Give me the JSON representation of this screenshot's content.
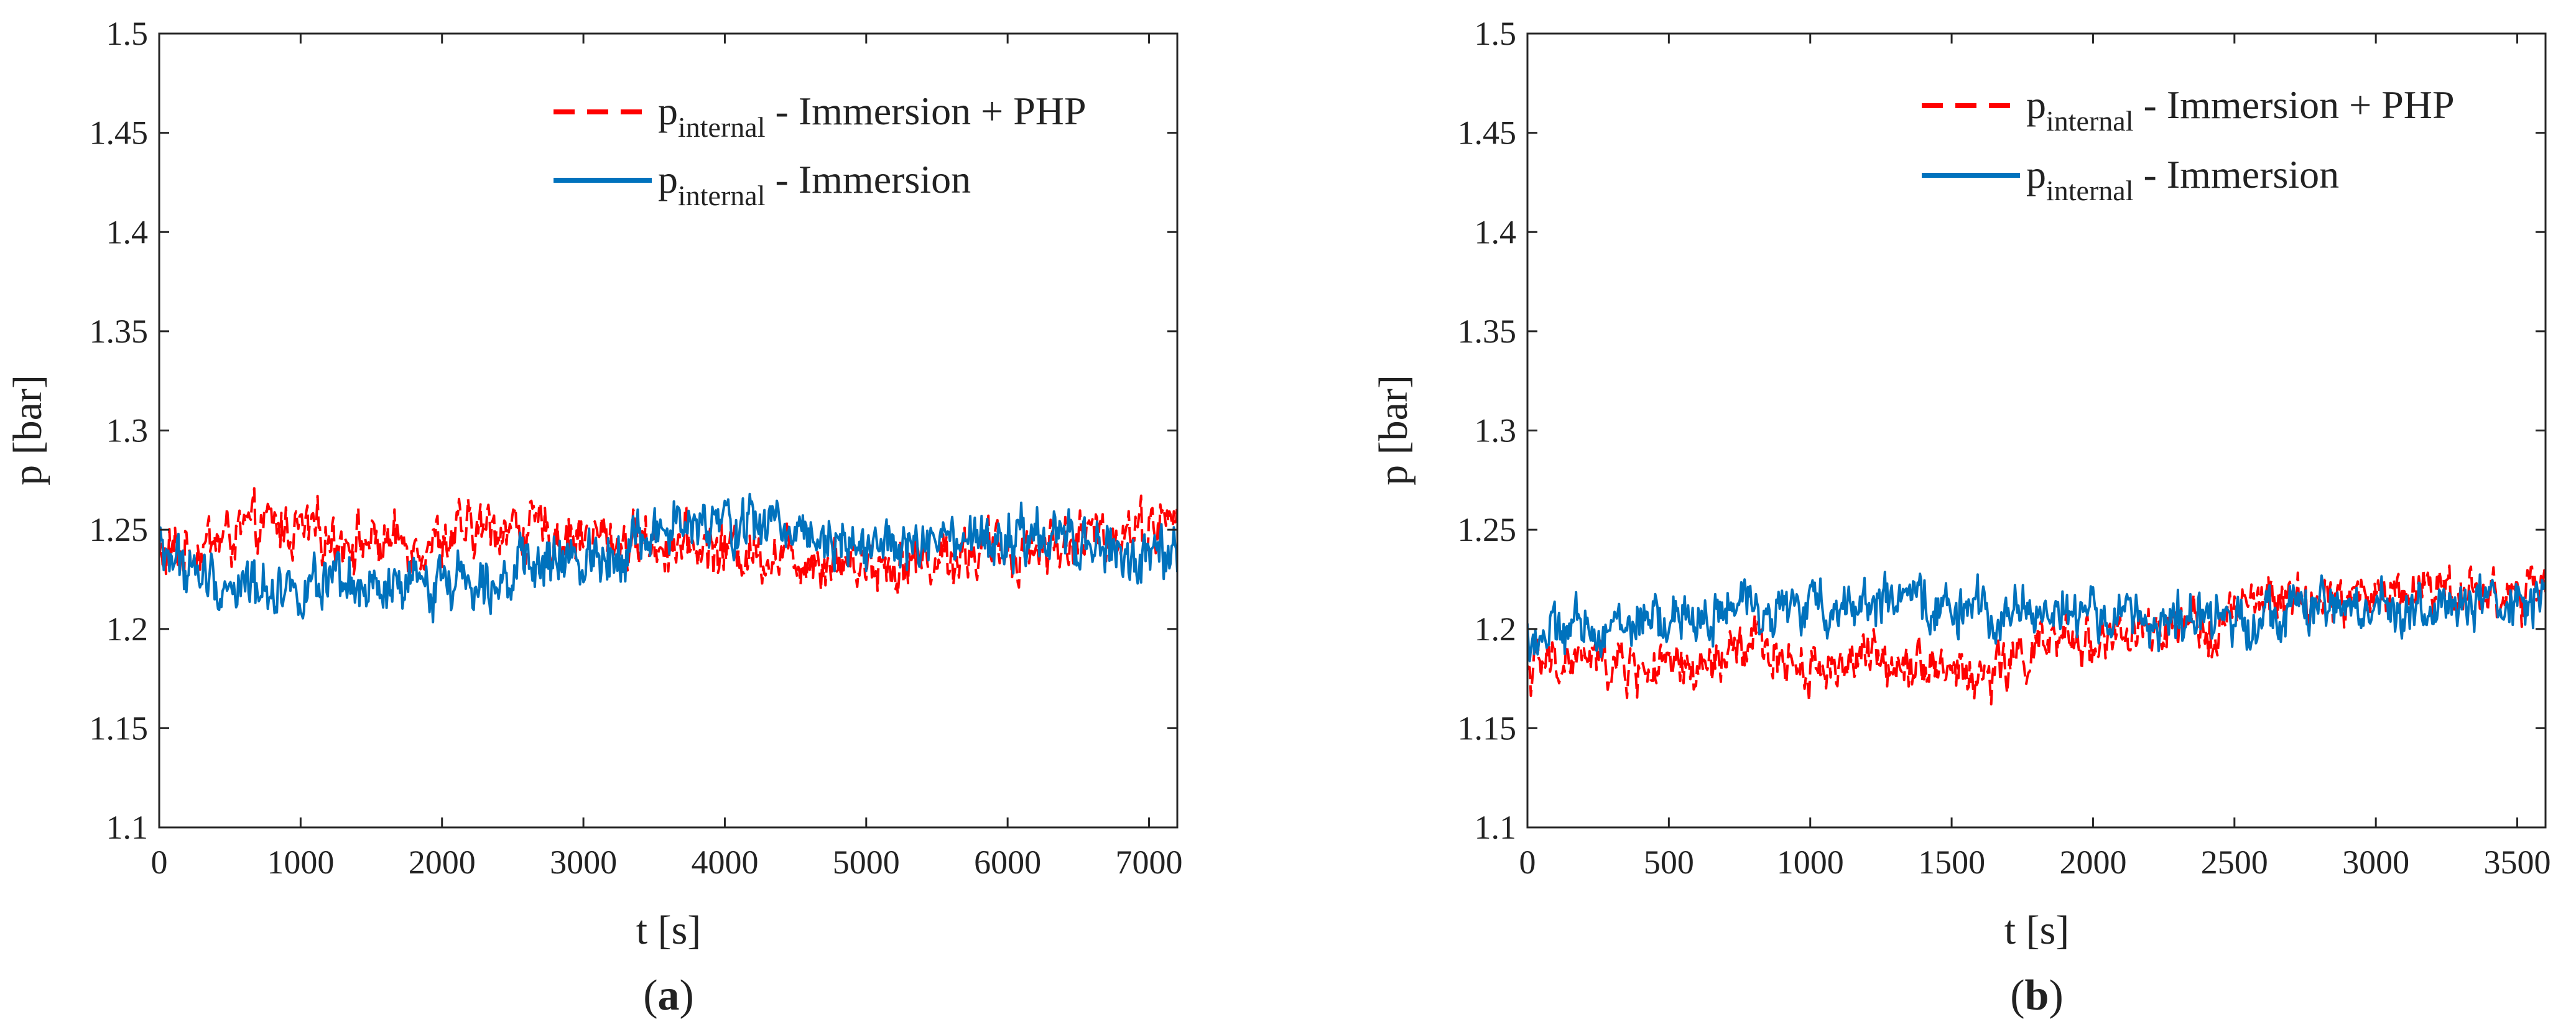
{
  "chart_data": [
    {
      "type": "line",
      "title": "",
      "xlabel": "t [s]",
      "ylabel": "p [bar]",
      "xlim": [
        0,
        7200
      ],
      "ylim": [
        1.1,
        1.5
      ],
      "xticks": [
        0,
        1000,
        2000,
        3000,
        4000,
        5000,
        6000,
        7000
      ],
      "yticks": [
        1.1,
        1.15,
        1.2,
        1.25,
        1.3,
        1.35,
        1.4,
        1.45,
        1.5
      ],
      "xtick_labels": [
        "0",
        "1000",
        "2000",
        "3000",
        "4000",
        "5000",
        "6000",
        "7000"
      ],
      "ytick_labels": [
        "1.1",
        "1.15",
        "1.2",
        "1.25",
        "1.3",
        "1.35",
        "1.4",
        "1.45",
        "1.5"
      ],
      "caption": "a",
      "legend_position": "top-right",
      "noise_amplitude": 0.012,
      "series": [
        {
          "name": "p_internal - Immersion + PHP",
          "legend_main": "p",
          "legend_sub": "internal",
          "legend_rest": " - Immersion + PHP",
          "color": "#ff0000",
          "dash": "dashed",
          "x": [
            0,
            400,
            800,
            1200,
            1600,
            2000,
            2400,
            2800,
            3200,
            3600,
            4000,
            4400,
            4800,
            5200,
            5600,
            6000,
            6400,
            6800,
            7200
          ],
          "y": [
            1.235,
            1.245,
            1.252,
            1.247,
            1.243,
            1.245,
            1.252,
            1.248,
            1.245,
            1.243,
            1.24,
            1.238,
            1.235,
            1.233,
            1.237,
            1.24,
            1.243,
            1.25,
            1.255
          ]
        },
        {
          "name": "p_internal - Immersion",
          "legend_main": "p",
          "legend_sub": "internal",
          "legend_rest": " - Immersion",
          "color": "#0072bd",
          "dash": "solid",
          "x": [
            0,
            400,
            800,
            1200,
            1600,
            2000,
            2400,
            2800,
            3200,
            3600,
            4000,
            4400,
            4800,
            5200,
            5600,
            6000,
            6400,
            6800,
            7200
          ],
          "y": [
            1.24,
            1.222,
            1.222,
            1.22,
            1.217,
            1.225,
            1.228,
            1.232,
            1.24,
            1.25,
            1.252,
            1.253,
            1.247,
            1.24,
            1.242,
            1.243,
            1.245,
            1.237,
            1.233
          ]
        }
      ]
    },
    {
      "type": "line",
      "title": "",
      "xlabel": "t [s]",
      "ylabel": "p [bar]",
      "xlim": [
        0,
        3600
      ],
      "ylim": [
        1.1,
        1.5
      ],
      "xticks": [
        0,
        500,
        1000,
        1500,
        2000,
        2500,
        3000,
        3500
      ],
      "yticks": [
        1.1,
        1.15,
        1.2,
        1.25,
        1.3,
        1.35,
        1.4,
        1.45,
        1.5
      ],
      "xtick_labels": [
        "0",
        "500",
        "1000",
        "1500",
        "2000",
        "2500",
        "3000",
        "3500"
      ],
      "ytick_labels": [
        "1.1",
        "1.15",
        "1.2",
        "1.25",
        "1.3",
        "1.35",
        "1.4",
        "1.45",
        "1.5"
      ],
      "caption": "b",
      "legend_position": "top-right",
      "noise_amplitude": 0.011,
      "series": [
        {
          "name": "p_internal - Immersion + PHP",
          "legend_main": "p",
          "legend_sub": "internal",
          "legend_rest": " - Immersion + PHP",
          "color": "#ff0000",
          "dash": "dashed",
          "x": [
            0,
            200,
            400,
            600,
            800,
            1000,
            1200,
            1400,
            1600,
            1800,
            2000,
            2200,
            2400,
            2600,
            2800,
            3000,
            3200,
            3400,
            3600
          ],
          "y": [
            1.18,
            1.185,
            1.18,
            1.178,
            1.192,
            1.18,
            1.185,
            1.185,
            1.175,
            1.19,
            1.195,
            1.197,
            1.2,
            1.215,
            1.213,
            1.218,
            1.222,
            1.218,
            1.217
          ]
        },
        {
          "name": "p_internal - Immersion",
          "legend_main": "p",
          "legend_sub": "internal",
          "legend_rest": " - Immersion",
          "color": "#0072bd",
          "dash": "solid",
          "x": [
            0,
            200,
            400,
            600,
            800,
            1000,
            1200,
            1400,
            1600,
            1800,
            2000,
            2200,
            2400,
            2600,
            2800,
            3000,
            3200,
            3400,
            3600
          ],
          "y": [
            1.195,
            1.2,
            1.203,
            1.205,
            1.212,
            1.21,
            1.215,
            1.212,
            1.208,
            1.21,
            1.207,
            1.205,
            1.203,
            1.208,
            1.21,
            1.21,
            1.21,
            1.212,
            1.212
          ]
        }
      ]
    }
  ]
}
